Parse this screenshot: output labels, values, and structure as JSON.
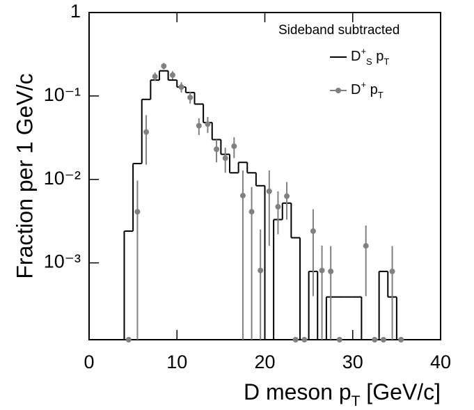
{
  "chart_data": {
    "type": "histogram",
    "y_label": "Fraction per 1 GeV/c",
    "x_label": {
      "parts": [
        "D meson p",
        "T",
        " [GeV/c]"
      ],
      "styles": [
        "",
        "sub",
        ""
      ]
    },
    "legend_title": "Sideband subtracted",
    "legend": "upper right",
    "ylog": true,
    "xlim": [
      0,
      40
    ],
    "xticks": [
      0,
      10,
      20,
      30,
      40
    ],
    "ylim": [
      0.00012,
      1
    ],
    "yticks": [
      {
        "value": 0.001,
        "label": "10⁻³"
      },
      {
        "value": 0.01,
        "label": "10⁻²"
      },
      {
        "value": 0.1,
        "label": "10⁻¹"
      },
      1
    ],
    "bins": [
      4,
      5,
      6,
      7,
      8,
      9,
      10,
      11,
      12,
      13,
      14,
      15,
      16,
      17,
      18,
      19,
      20,
      21,
      22,
      23,
      24,
      25,
      26,
      27,
      28,
      29,
      30,
      31,
      32,
      33,
      34,
      35,
      36
    ],
    "series": [
      {
        "type": "histogram",
        "name": [
          "D",
          "+",
          "S",
          " p",
          "T"
        ],
        "name_styles": [
          "",
          "sup",
          "sub",
          "",
          "sub"
        ],
        "color": "#000000",
        "values": [
          0.0024,
          0.0155,
          0.091,
          0.155,
          0.2,
          0.155,
          0.128,
          0.11,
          0.08,
          0.048,
          0.03,
          0.02,
          0.012,
          0.016,
          0.012,
          0.0084,
          0,
          0.0033,
          0.0052,
          0.002,
          0,
          0.00079,
          0,
          0.00039,
          0.00039,
          0.00039,
          0.00039,
          0,
          0,
          0.00079,
          0.00039,
          0
        ]
      },
      {
        "type": "scatter",
        "name": [
          "D",
          "+",
          " p",
          "T"
        ],
        "name_styles": [
          "",
          "sup",
          "",
          "sub"
        ],
        "color": "#808080",
        "x": [
          4.5,
          5.5,
          6.5,
          7.5,
          8.5,
          9.5,
          10.5,
          11.5,
          12.5,
          13.5,
          14.5,
          15.5,
          16.5,
          17.5,
          18.5,
          19.5,
          20.5,
          21.5,
          22.5,
          23.5,
          24.5,
          25.5,
          26.5,
          27.5,
          28.5,
          31.5,
          32.5,
          33.5,
          34.5,
          35.5
        ],
        "values": [
          0,
          0.0041,
          0.037,
          0.171,
          0.228,
          0.178,
          0.128,
          0.096,
          0.044,
          0.046,
          0.023,
          0.018,
          0.025,
          0.0064,
          0.0041,
          0.00081,
          0.0072,
          0.0047,
          0.0063,
          0,
          0,
          0.0024,
          0.00081,
          0.00079,
          0,
          0.0016,
          0,
          0,
          0.00079,
          0
        ],
        "errors": [
          0,
          0.0056,
          0.022,
          0.02,
          0.02,
          0.02,
          0.018,
          0.015,
          0.01,
          0.01,
          0.007,
          0.006,
          0.007,
          0.0064,
          0.004,
          0.0017,
          0.0056,
          0.0025,
          0.003,
          0,
          0,
          0.002,
          0.0008,
          0.0008,
          0,
          0.0012,
          0,
          0,
          0.0008,
          0
        ]
      }
    ]
  }
}
